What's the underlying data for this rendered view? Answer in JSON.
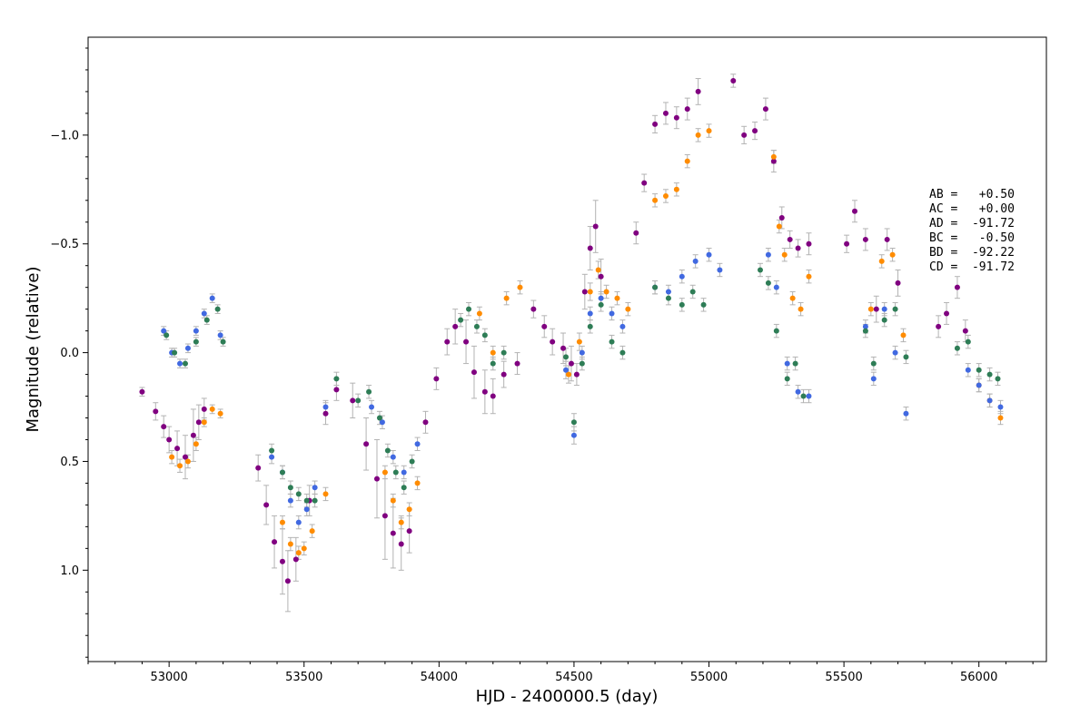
{
  "chart_data": {
    "type": "scatter",
    "xlabel": "HJD - 2400000.5 (day)",
    "ylabel": "Magnitude (relative)",
    "xlim": [
      52700,
      56250
    ],
    "ylim": [
      1.42,
      -1.45
    ],
    "y_inverted": true,
    "grid": false,
    "x_major_ticks": [
      53000,
      53500,
      54000,
      54500,
      55000,
      55500,
      56000
    ],
    "y_major_ticks": [
      -1.0,
      -0.5,
      0.0,
      0.5,
      1.0
    ],
    "y_tick_labels": [
      "−1.0",
      "−0.5",
      "0.0",
      "0.5",
      "1.0"
    ],
    "error_bar_color": "#b3b3b3",
    "annotations": [
      "AB =   +0.50",
      "AC =   +0.00",
      "AD =  -91.72",
      "BC =   -0.50",
      "BD =  -92.22",
      "CD =  -91.72"
    ],
    "series": [
      {
        "color": "#800080",
        "x": [
          52900,
          52950,
          52980,
          53000,
          53030,
          53060,
          53090,
          53110,
          53130,
          53330,
          53360,
          53390,
          53420,
          53440,
          53470,
          53520,
          53580,
          53620,
          53680,
          53730,
          53770,
          53800,
          53830,
          53860,
          53890,
          53950,
          53990,
          54030,
          54060,
          54100,
          54130,
          54170,
          54200,
          54240,
          54290,
          54350,
          54390,
          54420,
          54460,
          54490,
          54510,
          54540,
          54560,
          54580,
          54600,
          54730,
          54760,
          54800,
          54840,
          54880,
          54920,
          54960,
          55090,
          55130,
          55170,
          55210,
          55240,
          55270,
          55300,
          55330,
          55370,
          55510,
          55540,
          55580,
          55620,
          55660,
          55700,
          55850,
          55880,
          55920,
          55950
        ],
        "y": [
          0.18,
          0.27,
          0.34,
          0.4,
          0.44,
          0.48,
          0.38,
          0.32,
          0.26,
          0.53,
          0.7,
          0.87,
          0.96,
          1.05,
          0.95,
          0.68,
          0.28,
          0.17,
          0.22,
          0.42,
          0.58,
          0.75,
          0.83,
          0.88,
          0.82,
          0.32,
          0.12,
          -0.05,
          -0.12,
          -0.05,
          0.09,
          0.18,
          0.2,
          0.1,
          0.05,
          -0.2,
          -0.12,
          -0.05,
          -0.02,
          0.05,
          0.1,
          -0.28,
          -0.48,
          -0.58,
          -0.35,
          -0.55,
          -0.78,
          -1.05,
          -1.1,
          -1.08,
          -1.12,
          -1.2,
          -1.25,
          -1.0,
          -1.02,
          -1.12,
          -0.88,
          -0.62,
          -0.52,
          -0.48,
          -0.5,
          -0.5,
          -0.65,
          -0.52,
          -0.2,
          -0.52,
          -0.32,
          -0.12,
          -0.18,
          -0.3,
          -0.1
        ],
        "yerr": [
          0.02,
          0.04,
          0.05,
          0.06,
          0.08,
          0.1,
          0.12,
          0.08,
          0.05,
          0.06,
          0.09,
          0.12,
          0.15,
          0.14,
          0.1,
          0.07,
          0.05,
          0.05,
          0.08,
          0.12,
          0.18,
          0.2,
          0.16,
          0.12,
          0.1,
          0.05,
          0.05,
          0.06,
          0.08,
          0.1,
          0.12,
          0.1,
          0.08,
          0.06,
          0.05,
          0.04,
          0.05,
          0.06,
          0.07,
          0.08,
          0.05,
          0.08,
          0.1,
          0.12,
          0.08,
          0.05,
          0.04,
          0.04,
          0.05,
          0.05,
          0.05,
          0.06,
          0.03,
          0.04,
          0.04,
          0.05,
          0.05,
          0.05,
          0.04,
          0.04,
          0.05,
          0.04,
          0.05,
          0.05,
          0.06,
          0.05,
          0.06,
          0.05,
          0.05,
          0.05,
          0.05
        ]
      },
      {
        "color": "#ff8c00",
        "x": [
          53010,
          53040,
          53070,
          53100,
          53130,
          53160,
          53190,
          53420,
          53450,
          53480,
          53500,
          53530,
          53580,
          53800,
          53830,
          53860,
          53890,
          53920,
          54150,
          54200,
          54250,
          54300,
          54480,
          54520,
          54560,
          54590,
          54620,
          54660,
          54700,
          54800,
          54840,
          54880,
          54920,
          54960,
          55000,
          55240,
          55260,
          55280,
          55310,
          55340,
          55370,
          55600,
          55640,
          55680,
          55720,
          56000,
          56040,
          56080
        ],
        "y": [
          0.48,
          0.52,
          0.5,
          0.42,
          0.32,
          0.26,
          0.28,
          0.78,
          0.88,
          0.92,
          0.9,
          0.82,
          0.65,
          0.55,
          0.68,
          0.78,
          0.72,
          0.6,
          -0.18,
          0.0,
          -0.25,
          -0.3,
          0.1,
          -0.05,
          -0.28,
          -0.38,
          -0.28,
          -0.25,
          -0.2,
          -0.7,
          -0.72,
          -0.75,
          -0.88,
          -1.0,
          -1.02,
          -0.9,
          -0.58,
          -0.45,
          -0.25,
          -0.2,
          -0.35,
          -0.2,
          -0.42,
          -0.45,
          -0.08,
          0.15,
          0.22,
          0.3
        ],
        "yerr": [
          0.03,
          0.03,
          0.03,
          0.03,
          0.02,
          0.02,
          0.02,
          0.03,
          0.03,
          0.03,
          0.03,
          0.03,
          0.03,
          0.03,
          0.03,
          0.03,
          0.03,
          0.03,
          0.03,
          0.03,
          0.03,
          0.03,
          0.04,
          0.04,
          0.04,
          0.04,
          0.03,
          0.03,
          0.03,
          0.03,
          0.03,
          0.03,
          0.03,
          0.03,
          0.03,
          0.03,
          0.03,
          0.03,
          0.03,
          0.03,
          0.03,
          0.03,
          0.03,
          0.03,
          0.03,
          0.03,
          0.03,
          0.03
        ]
      },
      {
        "color": "#4169e1",
        "x": [
          52980,
          53010,
          53040,
          53070,
          53100,
          53130,
          53160,
          53190,
          53380,
          53420,
          53450,
          53480,
          53510,
          53540,
          53580,
          53750,
          53790,
          53830,
          53870,
          53920,
          54470,
          54500,
          54530,
          54560,
          54600,
          54640,
          54680,
          54800,
          54850,
          54900,
          54950,
          55000,
          55040,
          55220,
          55250,
          55290,
          55330,
          55370,
          55580,
          55610,
          55650,
          55690,
          55730,
          55960,
          56000,
          56040,
          56080
        ],
        "y": [
          -0.1,
          0.0,
          0.05,
          -0.02,
          -0.1,
          -0.18,
          -0.25,
          -0.08,
          0.48,
          0.55,
          0.68,
          0.78,
          0.72,
          0.62,
          0.25,
          0.25,
          0.32,
          0.48,
          0.55,
          0.42,
          0.08,
          0.38,
          0.0,
          -0.18,
          -0.25,
          -0.18,
          -0.12,
          -0.3,
          -0.28,
          -0.35,
          -0.42,
          -0.45,
          -0.38,
          -0.45,
          -0.3,
          0.05,
          0.18,
          0.2,
          -0.12,
          0.12,
          -0.2,
          0.0,
          0.28,
          0.08,
          0.15,
          0.22,
          0.25
        ],
        "yerr": [
          0.02,
          0.02,
          0.02,
          0.02,
          0.02,
          0.02,
          0.02,
          0.02,
          0.03,
          0.03,
          0.03,
          0.03,
          0.03,
          0.03,
          0.03,
          0.03,
          0.03,
          0.03,
          0.03,
          0.03,
          0.04,
          0.04,
          0.03,
          0.03,
          0.03,
          0.03,
          0.03,
          0.03,
          0.03,
          0.03,
          0.03,
          0.03,
          0.03,
          0.03,
          0.03,
          0.03,
          0.03,
          0.03,
          0.03,
          0.03,
          0.03,
          0.03,
          0.03,
          0.03,
          0.03,
          0.03,
          0.03
        ]
      },
      {
        "color": "#2e7d56",
        "x": [
          52990,
          53020,
          53060,
          53100,
          53140,
          53180,
          53200,
          53380,
          53420,
          53450,
          53480,
          53510,
          53540,
          53620,
          53700,
          53740,
          53780,
          53810,
          53840,
          53870,
          53900,
          54080,
          54110,
          54140,
          54170,
          54200,
          54240,
          54470,
          54500,
          54530,
          54560,
          54600,
          54640,
          54680,
          54800,
          54850,
          54900,
          54940,
          54980,
          55190,
          55220,
          55250,
          55290,
          55320,
          55350,
          55580,
          55610,
          55650,
          55690,
          55730,
          55920,
          55960,
          56000,
          56040,
          56070
        ],
        "y": [
          -0.08,
          0.0,
          0.05,
          -0.05,
          -0.15,
          -0.2,
          -0.05,
          0.45,
          0.55,
          0.62,
          0.65,
          0.68,
          0.68,
          0.12,
          0.22,
          0.18,
          0.3,
          0.45,
          0.55,
          0.62,
          0.5,
          -0.15,
          -0.2,
          -0.12,
          -0.08,
          0.05,
          0.0,
          0.02,
          0.32,
          0.05,
          -0.12,
          -0.22,
          -0.05,
          0.0,
          -0.3,
          -0.25,
          -0.22,
          -0.28,
          -0.22,
          -0.38,
          -0.32,
          -0.1,
          0.12,
          0.05,
          0.2,
          -0.1,
          0.05,
          -0.15,
          -0.2,
          0.02,
          -0.02,
          -0.05,
          0.08,
          0.1,
          0.12
        ],
        "yerr": [
          0.02,
          0.02,
          0.02,
          0.02,
          0.02,
          0.02,
          0.02,
          0.03,
          0.03,
          0.03,
          0.03,
          0.03,
          0.03,
          0.03,
          0.03,
          0.03,
          0.03,
          0.03,
          0.03,
          0.03,
          0.03,
          0.03,
          0.03,
          0.03,
          0.03,
          0.03,
          0.03,
          0.04,
          0.04,
          0.03,
          0.03,
          0.03,
          0.03,
          0.03,
          0.03,
          0.03,
          0.03,
          0.03,
          0.03,
          0.03,
          0.03,
          0.03,
          0.03,
          0.03,
          0.03,
          0.03,
          0.03,
          0.03,
          0.03,
          0.03,
          0.03,
          0.03,
          0.03,
          0.03,
          0.03
        ]
      }
    ]
  }
}
